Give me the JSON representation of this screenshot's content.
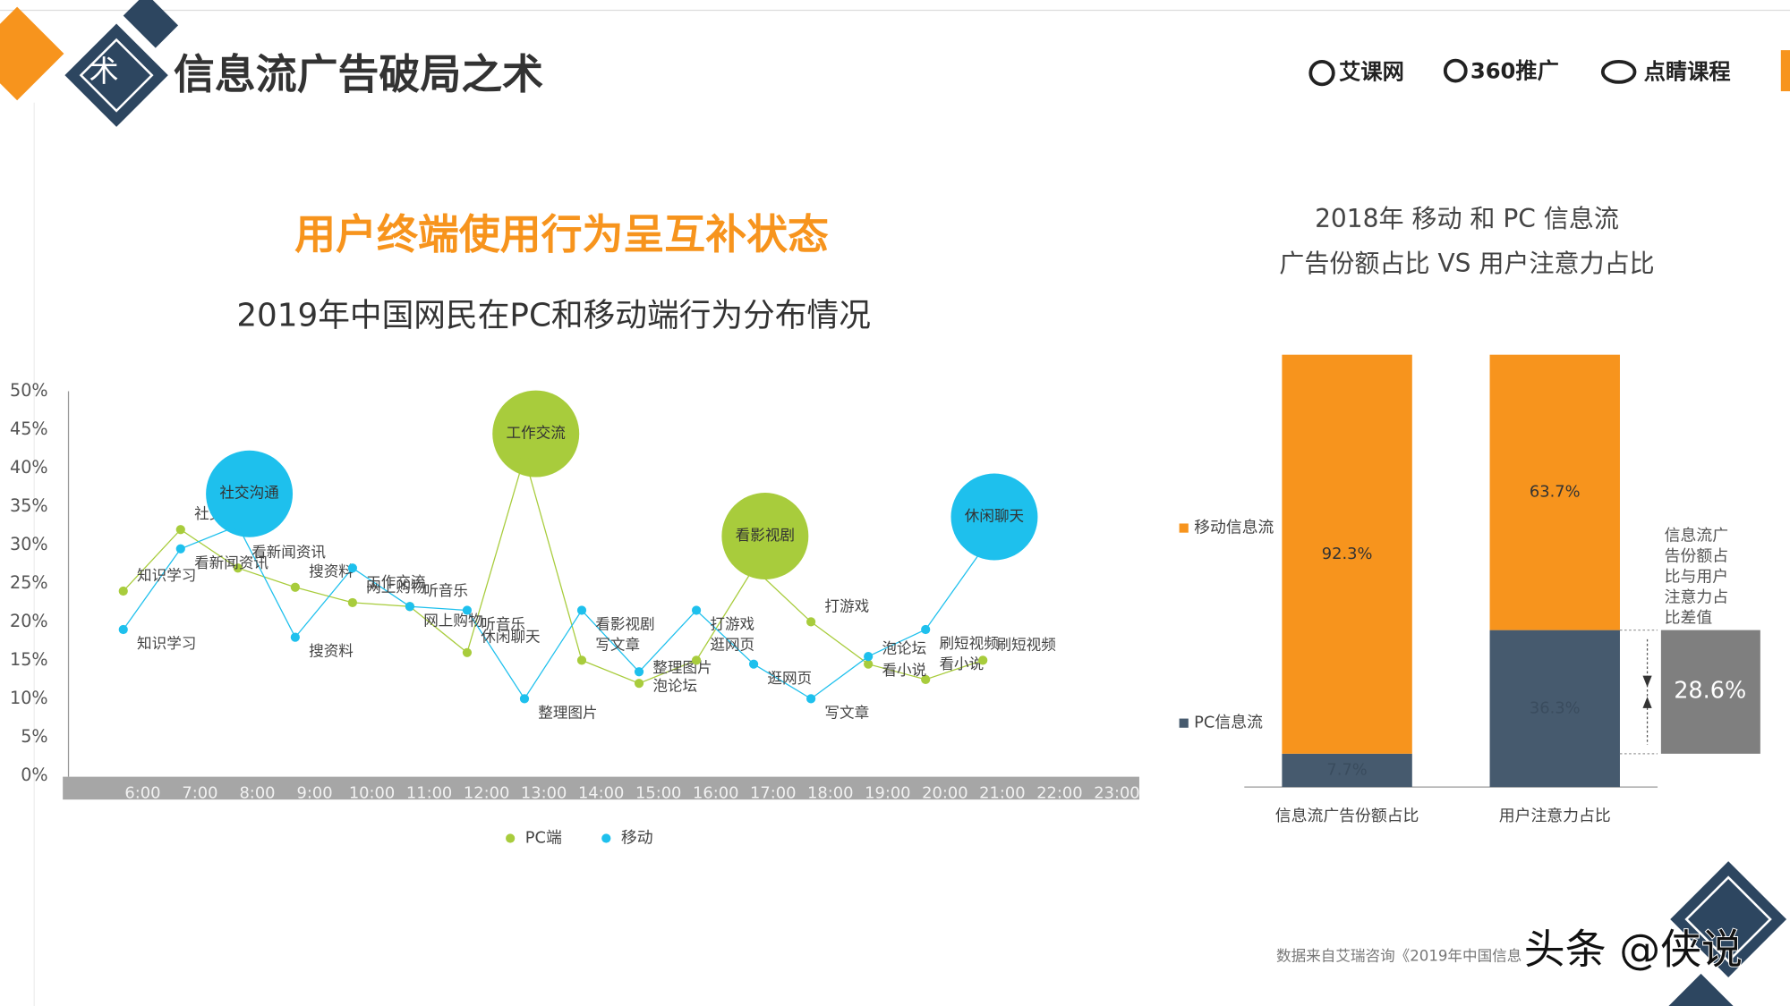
{
  "header": {
    "icon_text": "术",
    "title": "信息流广告破局之术",
    "logos": [
      "艾课网",
      "360推广",
      "点睛课程"
    ]
  },
  "headline": "用户终端使用行为呈互补状态",
  "chart_data": [
    {
      "type": "line",
      "title": "2019年中国网民在PC和移动端行为分布情况",
      "categories": [
        "6:00",
        "7:00",
        "8:00",
        "9:00",
        "10:00",
        "11:00",
        "12:00",
        "13:00",
        "14:00",
        "15:00",
        "16:00",
        "17:00",
        "18:00",
        "19:00",
        "20:00",
        "21:00",
        "22:00",
        "23:00"
      ],
      "ylim": [
        0,
        50
      ],
      "yticks": [
        {
          "value": 0,
          "label": "0%"
        },
        {
          "value": 5,
          "label": "5%"
        },
        {
          "value": 10,
          "label": "10%"
        },
        {
          "value": 15,
          "label": "15%"
        },
        {
          "value": 20,
          "label": "20%"
        },
        {
          "value": 25,
          "label": "25%"
        },
        {
          "value": 30,
          "label": "30%"
        },
        {
          "value": 35,
          "label": "35%"
        },
        {
          "value": 40,
          "label": "40%"
        },
        {
          "value": 45,
          "label": "45%"
        },
        {
          "value": 50,
          "label": "50%"
        }
      ],
      "series": [
        {
          "name": "PC端",
          "color": "#a8cc3c",
          "values": [
            24,
            32,
            27,
            24.5,
            22.5,
            22,
            16,
            41.5,
            15,
            12,
            15,
            27,
            20,
            14.5,
            12.5,
            15,
            null,
            null
          ],
          "point_labels": [
            "知识学习",
            "社交沟通",
            "看新闻资讯",
            "搜资料",
            "网上购物",
            "听音乐",
            "休闲聊天",
            "工作交流",
            "写文章",
            "整理图片",
            "逛网页",
            "看影视剧",
            "打游戏",
            "泡论坛",
            "看小说",
            "刷短视频",
            null,
            null
          ],
          "highlights": [
            7,
            11
          ]
        },
        {
          "name": "移动",
          "color": "#1ec0ed",
          "values": [
            19,
            29.5,
            32.5,
            18,
            27,
            22,
            21.5,
            10,
            21.5,
            13.5,
            21.5,
            14.5,
            10,
            15.5,
            19,
            29.5,
            null,
            null
          ],
          "point_labels": [
            "知识学习",
            "看新闻资讯",
            "社交沟通",
            "搜资料",
            "工作交流",
            "网上购物",
            "听音乐",
            "整理图片",
            "看影视剧",
            "泡论坛",
            "打游戏",
            "逛网页",
            "写文章",
            "看小说",
            "刷短视频",
            "休闲聊天",
            null,
            null
          ],
          "highlights": [
            2,
            15
          ]
        }
      ]
    },
    {
      "type": "bar",
      "stacked": true,
      "title": [
        "2018年 移动 和 PC 信息流",
        "广告份额占比 VS 用户注意力占比"
      ],
      "categories": [
        "信息流广告份额占比",
        "用户注意力占比"
      ],
      "ylim": [
        0,
        100
      ],
      "series": [
        {
          "name": "PC信息流",
          "color": "#465a6e",
          "values": [
            7.7,
            36.3
          ],
          "value_labels": [
            "7.7%",
            "36.3%"
          ]
        },
        {
          "name": "移动信息流",
          "color": "#f7941d",
          "values": [
            92.3,
            63.7
          ],
          "value_labels": [
            "92.3%",
            "63.7%"
          ]
        }
      ],
      "difference": {
        "text": "信息流广告份额占比与用户注意力占比差值",
        "value": 28.6,
        "label": "28.6%",
        "color": "#7f7f7f"
      }
    }
  ],
  "footer": {
    "source": "数据来自艾瑞咨询《2019年中国信息",
    "watermark": "头条 @侠说"
  }
}
